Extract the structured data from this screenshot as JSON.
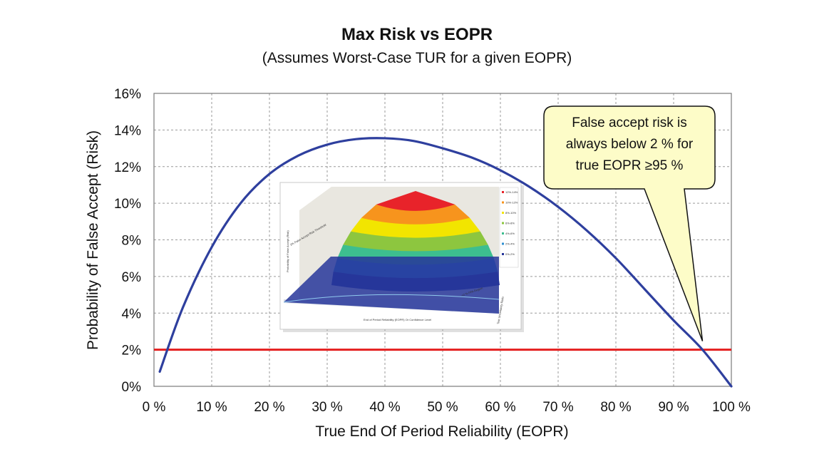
{
  "chart_data": {
    "type": "line",
    "title": "Max Risk vs EOPR",
    "subtitle": "(Assumes Worst-Case TUR for a given EOPR)",
    "xlabel": "True End Of Period Reliability (EOPR)",
    "ylabel": "Probability of False Accept (Risk)",
    "xlim": [
      0,
      100
    ],
    "ylim": [
      0,
      16
    ],
    "x_ticks": [
      "0 %",
      "10 %",
      "20 %",
      "30 %",
      "40 %",
      "50 %",
      "60 %",
      "70 %",
      "80 %",
      "90 %",
      "100 %"
    ],
    "y_ticks": [
      "0%",
      "2%",
      "4%",
      "6%",
      "8%",
      "10%",
      "12%",
      "14%",
      "16%"
    ],
    "grid": true,
    "series": [
      {
        "color": "#2e3f9e",
        "x": [
          1,
          5,
          10,
          15,
          20,
          25,
          30,
          35,
          40,
          45,
          50,
          55,
          60,
          65,
          70,
          75,
          80,
          85,
          90,
          95,
          100
        ],
        "y": [
          0.8,
          4.3,
          7.6,
          10.0,
          11.6,
          12.6,
          13.2,
          13.5,
          13.55,
          13.4,
          13.0,
          12.5,
          11.8,
          10.9,
          9.8,
          8.5,
          7.0,
          5.3,
          3.6,
          2.0,
          0.0
        ]
      }
    ],
    "threshold": {
      "y": 2,
      "color": "#e41e1e"
    },
    "annotation": {
      "lines": [
        "False accept risk is",
        "always below 2 % for",
        "true EOPR ≥95 %"
      ],
      "points_to_x": 95,
      "points_to_y": 2,
      "fill": "#fdfcc8"
    },
    "inset": {
      "ylabel": "Probability of False Accept (Risk)",
      "xlabel": "End of Period Reliability (EOPR) Or Confidence Level",
      "zlabel": "Test Uncertainty Ratio",
      "threshold_label": "2% False Accept Risk Threshold",
      "region_label": "<2 % PFA Region",
      "legend": [
        "12%-14%",
        "10%-12%",
        "8%-10%",
        "6%-8%",
        "4%-6%",
        "2%-4%",
        "0%-2%"
      ],
      "band_colors": [
        "#e8232a",
        "#f7941d",
        "#f2e500",
        "#8dc63f",
        "#3dbe8f",
        "#2f8fd0",
        "#27369a"
      ]
    }
  }
}
